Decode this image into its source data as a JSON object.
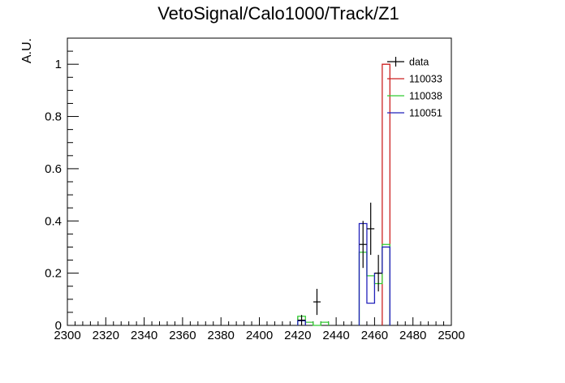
{
  "chart_data": {
    "type": "line",
    "title": "VetoSignal/Calo1000/Track/Z1",
    "xlabel": "",
    "ylabel": "A.U.",
    "xlim": [
      2300,
      2500
    ],
    "ylim": [
      0,
      1.1
    ],
    "x_ticks": [
      2300,
      2320,
      2340,
      2360,
      2380,
      2400,
      2420,
      2440,
      2460,
      2480,
      2500
    ],
    "x_tick_labels": [
      "2300",
      "2320",
      "2340",
      "2360",
      "2380",
      "2400",
      "2420",
      "2440",
      "2460",
      "2480",
      "2500"
    ],
    "y_ticks": [
      0,
      0.2,
      0.4,
      0.6,
      0.8,
      1.0
    ],
    "y_tick_labels": [
      "0",
      "0.2",
      "0.4",
      "0.6",
      "0.8",
      "1"
    ],
    "grid": false,
    "legend_position": "top-right",
    "series": [
      {
        "name": "data",
        "style": "errorbar",
        "color": "#000000",
        "points": [
          {
            "x": 2422,
            "y": 0.02,
            "err": 0.02
          },
          {
            "x": 2430,
            "y": 0.09,
            "err": 0.05
          },
          {
            "x": 2454,
            "y": 0.31,
            "err": 0.09
          },
          {
            "x": 2458,
            "y": 0.37,
            "err": 0.1
          },
          {
            "x": 2462,
            "y": 0.2,
            "err": 0.07
          }
        ]
      },
      {
        "name": "110033",
        "style": "step",
        "color": "#cc2222",
        "bins": [
          {
            "x0": 2464,
            "x1": 2468,
            "y": 1.0
          }
        ]
      },
      {
        "name": "110038",
        "style": "step",
        "color": "#33cc33",
        "bins": [
          {
            "x0": 2420,
            "x1": 2424,
            "y": 0.035
          },
          {
            "x0": 2424,
            "x1": 2428,
            "y": 0.012
          },
          {
            "x0": 2428,
            "x1": 2432,
            "y": 0.0
          },
          {
            "x0": 2432,
            "x1": 2436,
            "y": 0.012
          },
          {
            "x0": 2452,
            "x1": 2456,
            "y": 0.28
          },
          {
            "x0": 2456,
            "x1": 2460,
            "y": 0.19
          },
          {
            "x0": 2460,
            "x1": 2464,
            "y": 0.16
          },
          {
            "x0": 2464,
            "x1": 2468,
            "y": 0.31
          }
        ]
      },
      {
        "name": "110051",
        "style": "step",
        "color": "#2222bb",
        "bins": [
          {
            "x0": 2420,
            "x1": 2424,
            "y": 0.018
          },
          {
            "x0": 2452,
            "x1": 2456,
            "y": 0.39
          },
          {
            "x0": 2456,
            "x1": 2460,
            "y": 0.085
          },
          {
            "x0": 2460,
            "x1": 2464,
            "y": 0.2
          },
          {
            "x0": 2464,
            "x1": 2468,
            "y": 0.3
          }
        ]
      }
    ]
  }
}
